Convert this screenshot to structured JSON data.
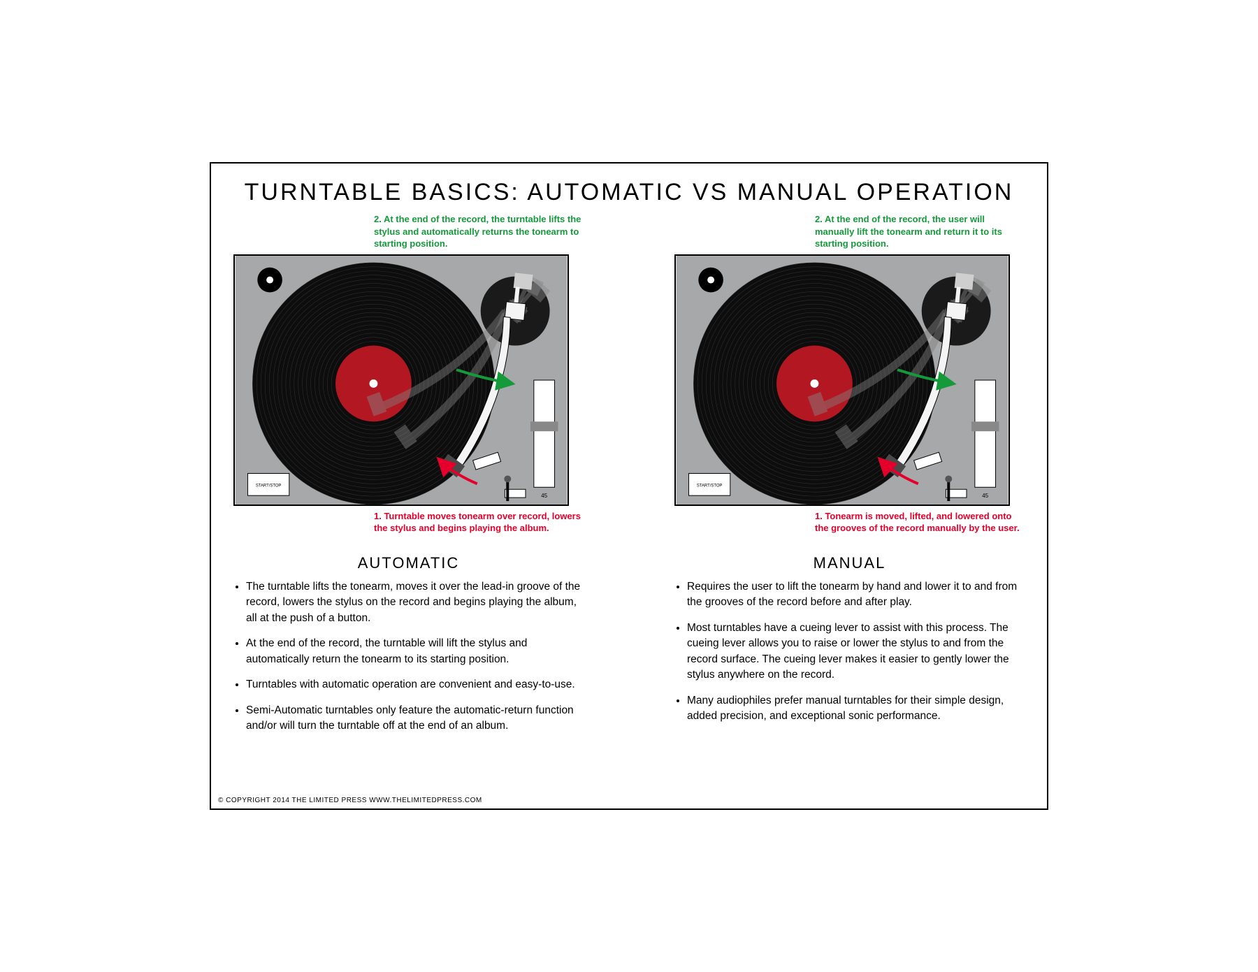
{
  "title": "TURNTABLE BASICS: AUTOMATIC VS MANUAL OPERATION",
  "columns": {
    "automatic": {
      "top_caption": "2. At the end of the record, the turntable lifts the stylus and automatically returns the tonearm to starting position.",
      "bottom_caption": "1. Turntable moves tonearm over record, lowers the stylus and begins playing the album.",
      "heading": "AUTOMATIC",
      "bullets": [
        "The turntable lifts the tonearm, moves it over the lead-in groove of the record, lowers the stylus on the record and begins playing the album, all at the push of a button.",
        "At the end of the record, the turntable will lift the stylus and automatically return the tonearm to its starting position.",
        "Turntables with automatic operation are convenient and easy-to-use.",
        "Semi-Automatic turntables only feature the automatic-return function and/or will turn the turntable off at the end of an album."
      ]
    },
    "manual": {
      "top_caption": "2. At the end of the record, the user will manually lift the tonearm and return it to its starting position.",
      "bottom_caption": "1. Tonearm is moved, lifted, and lowered onto the grooves of the record manually by the user.",
      "heading": "MANUAL",
      "bullets": [
        "Requires the user to lift the tonearm by hand and lower it to and from the grooves of the record before and after play.",
        "Most turntables have a cueing lever to assist with this process. The cueing lever allows you to raise or lower the stylus to and from the record surface. The cueing lever makes it easier to gently lower the stylus anywhere on the record.",
        "Many audiophiles prefer manual turntables for their simple design, added precision, and exceptional sonic performance."
      ]
    }
  },
  "turntable": {
    "plinth_color": "#a7a8a9",
    "record_color": "#0d0d0d",
    "groove_color": "#2e2e2e",
    "label_color": "#b31822",
    "spindle_color": "#ffffff",
    "tonearm_fill": "#f4f4f4",
    "tonearm_ghost": "#808080",
    "cart_color": "#4a4a4a",
    "counterweight": "#cfcfcf",
    "button_label": "START/STOP",
    "speed_label": "45",
    "arrow_green": "#149a3b",
    "arrow_red": "#e4002b"
  },
  "copyright": "© COPYRIGHT 2014 THE LIMITED PRESS WWW.THELIMITEDPRESS.COM"
}
